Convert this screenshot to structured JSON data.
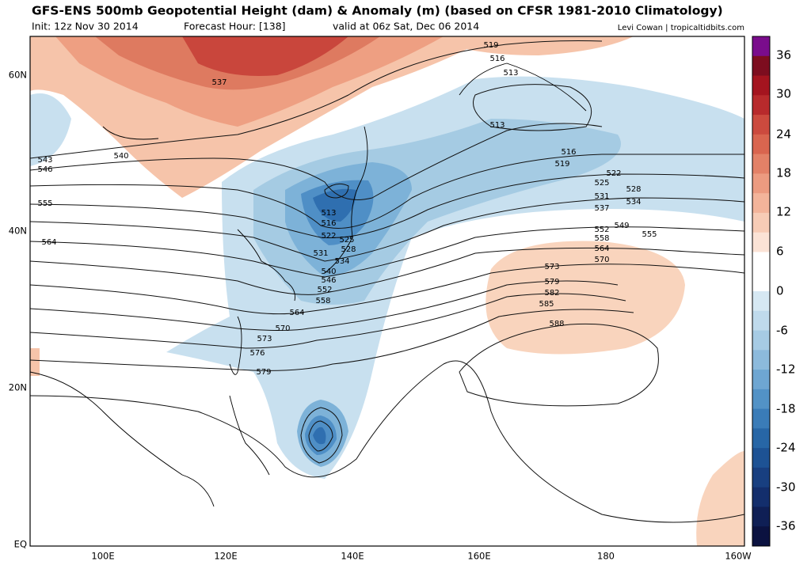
{
  "header": {
    "title": "GFS-ENS 500mb Geopotential Height (dam) & Anomaly (m) (based on CFSR 1981-2010 Climatology)",
    "init": "Init: 12z Nov 30 2014",
    "forecast_hour": "Forecast Hour: [138]",
    "valid": "valid at 06z Sat, Dec 06 2014",
    "credit": "Levi Cowan | tropicaltidbits.com"
  },
  "map": {
    "lat_labels": [
      "60N",
      "40N",
      "20N",
      "EQ"
    ],
    "lon_labels": [
      "100E",
      "120E",
      "140E",
      "160E",
      "180",
      "160W"
    ],
    "contour_labels": [
      "519",
      "516",
      "513",
      "537",
      "540",
      "543",
      "546",
      "555",
      "564",
      "513",
      "516",
      "519",
      "522",
      "525",
      "528",
      "531",
      "534",
      "537",
      "549",
      "552",
      "555",
      "558",
      "564",
      "570",
      "573",
      "579",
      "582",
      "585",
      "588",
      "513",
      "516",
      "522",
      "525",
      "528",
      "531",
      "534",
      "540",
      "546",
      "552",
      "558",
      "564",
      "570",
      "573",
      "576",
      "579"
    ]
  },
  "colorbar": {
    "labels": [
      "36",
      "30",
      "24",
      "18",
      "12",
      "6",
      "0",
      "-6",
      "-12",
      "-18",
      "-24",
      "-30",
      "-36"
    ]
  }
}
